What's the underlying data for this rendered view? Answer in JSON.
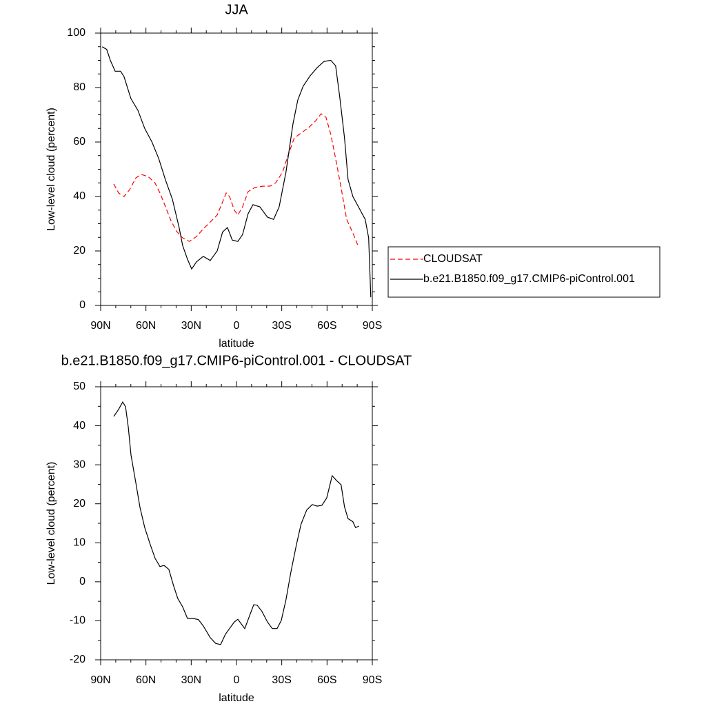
{
  "chart_data": [
    {
      "type": "line",
      "title": "JJA",
      "xlabel": "latitude",
      "ylabel": "Low-level cloud (percent)",
      "xlim": [
        90,
        -90
      ],
      "ylim": [
        0,
        100
      ],
      "xticks": [
        {
          "value": 90,
          "label": "90N"
        },
        {
          "value": 60,
          "label": "60N"
        },
        {
          "value": 30,
          "label": "30N"
        },
        0,
        {
          "value": -30,
          "label": "30S"
        },
        {
          "value": -60,
          "label": "60S"
        },
        {
          "value": -90,
          "label": "90S"
        }
      ],
      "yticks": [
        0,
        20,
        40,
        60,
        80,
        100
      ],
      "legend": "outside-right",
      "series": [
        {
          "name": "CLOUDSAT",
          "color": "#ff0000",
          "dash": "dashed",
          "x": [
            81.3,
            78.1,
            74.5,
            70.8,
            66.7,
            63.1,
            58.5,
            54,
            50.7,
            47,
            43.4,
            39.8,
            35.7,
            31.2,
            26.5,
            22,
            17.4,
            12.8,
            9.6,
            6.8,
            4.6,
            1.4,
            -0.9,
            -4,
            -7.7,
            -12.2,
            -17.7,
            -22.3,
            -25.9,
            -30.5,
            -34.2,
            -38.3,
            -42.8,
            -47.8,
            -52.5,
            -56.1,
            -59.3,
            -62.5,
            -65.7,
            -69.3,
            -73,
            -77.1,
            -80.8
          ],
          "values": [
            44.6,
            41.3,
            40,
            42.5,
            46.8,
            48.1,
            47.3,
            45,
            41.3,
            36.2,
            31.1,
            27.3,
            24.8,
            23.5,
            25.3,
            28.1,
            30.6,
            33.2,
            37.5,
            41.3,
            40,
            35,
            33.2,
            36.2,
            41.8,
            43.3,
            43.8,
            43.8,
            45,
            48.9,
            55.2,
            61.5,
            63.3,
            65.3,
            67.8,
            70.4,
            69.1,
            62.8,
            53.9,
            43.3,
            31.6,
            26.6,
            21.5
          ]
        },
        {
          "name": "b.e21.B1850.f09_g17.CMIP6-piControl.001",
          "color": "#000000",
          "dash": "solid",
          "x": [
            89,
            86,
            83.6,
            80.4,
            76.8,
            74.5,
            70,
            65.3,
            60.8,
            56,
            51.6,
            47,
            42.5,
            38,
            35.7,
            32.5,
            29.7,
            26.5,
            22,
            17.4,
            12.8,
            9.2,
            6,
            2.8,
            -0.9,
            -4,
            -7.7,
            -10.9,
            -15.5,
            -20.5,
            -24.6,
            -28.3,
            -32.8,
            -37.4,
            -40.6,
            -44.2,
            -48.8,
            -53.4,
            -58,
            -62.5,
            -65.7,
            -68.4,
            -71.6,
            -73.9,
            -77.1,
            -80.8,
            -85.3,
            -87.6,
            -89
          ],
          "values": [
            95,
            94,
            90,
            86,
            86,
            84,
            76,
            71.6,
            65,
            60,
            54,
            46,
            39,
            28.6,
            22,
            17,
            13.4,
            16,
            18,
            16.5,
            20,
            27,
            28.6,
            24,
            23.5,
            26,
            33.7,
            37,
            36.2,
            32.4,
            31.6,
            36.2,
            49,
            66.6,
            75.4,
            80.5,
            84.3,
            87.3,
            89.6,
            90,
            88,
            76.7,
            61.5,
            46.3,
            40,
            36.2,
            31.6,
            24.8,
            3
          ]
        }
      ]
    },
    {
      "type": "line",
      "title": "b.e21.B1850.f09_g17.CMIP6-piControl.001 - CLOUDSAT",
      "xlabel": "latitude",
      "ylabel": "Low-level cloud (percent)",
      "xlim": [
        90,
        -90
      ],
      "ylim": [
        -20,
        50
      ],
      "xticks": [
        {
          "value": 90,
          "label": "90N"
        },
        {
          "value": 60,
          "label": "60N"
        },
        {
          "value": 30,
          "label": "30N"
        },
        0,
        {
          "value": -30,
          "label": "30S"
        },
        {
          "value": -60,
          "label": "60S"
        },
        {
          "value": -90,
          "label": "90S"
        }
      ],
      "yticks": [
        -20,
        -10,
        0,
        10,
        20,
        30,
        40,
        50
      ],
      "series": [
        {
          "color": "#000000",
          "dash": "solid",
          "x": [
            81.3,
            78.1,
            75.4,
            73.5,
            71.7,
            69.9,
            66.7,
            64,
            60.8,
            57.1,
            53.9,
            50.7,
            48,
            44.8,
            41.6,
            38.9,
            35.7,
            32.5,
            28.8,
            25.2,
            22,
            17.4,
            13.8,
            10.5,
            7.4,
            4.6,
            1.4,
            -0.9,
            -3.2,
            -5.5,
            -8.7,
            -11.4,
            -13.7,
            -16.9,
            -20.5,
            -23.7,
            -26.9,
            -29.7,
            -32.8,
            -36,
            -39.7,
            -42.8,
            -46.5,
            -50.2,
            -53.4,
            -56.6,
            -59.8,
            -63.4,
            -66.2,
            -69.3,
            -71.6,
            -73.9,
            -77.1,
            -78.9,
            -81.2
          ],
          "values": [
            42.4,
            44.2,
            46.1,
            44.9,
            39.6,
            32.5,
            25.4,
            19.2,
            13.9,
            9.5,
            6,
            3.9,
            4.2,
            3.2,
            -1.1,
            -4.3,
            -6.4,
            -9.4,
            -9.4,
            -9.7,
            -11.3,
            -14.3,
            -15.8,
            -16.1,
            -13.5,
            -12,
            -10.3,
            -9.6,
            -10.8,
            -12,
            -8.7,
            -5.9,
            -6,
            -7.6,
            -10.3,
            -12,
            -12,
            -9.9,
            -4.6,
            2.4,
            9.5,
            14.8,
            18.4,
            19.8,
            19.4,
            19.6,
            21.5,
            27.2,
            26,
            24.9,
            19.2,
            16.2,
            15.4,
            13.9,
            14.3
          ]
        }
      ]
    }
  ]
}
